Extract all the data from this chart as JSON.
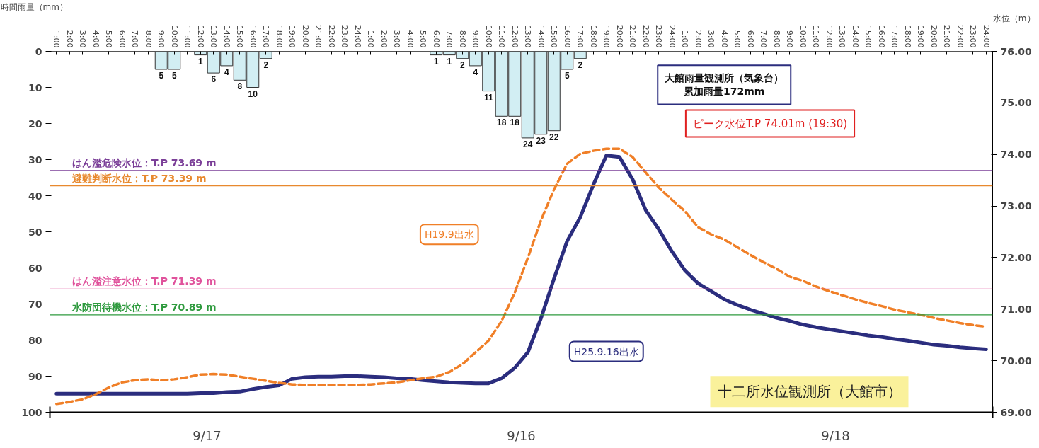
{
  "chart_data": {
    "type": "bar",
    "ylabel": "時間雨量（mm）",
    "y2label": "水位（m）",
    "categories": [
      "1:00",
      "2:00",
      "3:00",
      "4:00",
      "5:00",
      "6:00",
      "7:00",
      "8:00",
      "9:00",
      "10:00",
      "11:00",
      "12:00",
      "13:00",
      "14:00",
      "15:00",
      "16:00",
      "17:00",
      "18:00",
      "19:00",
      "20:00",
      "21:00",
      "22:00",
      "23:00",
      "24:00",
      "1:00",
      "2:00",
      "3:00",
      "4:00",
      "5:00",
      "6:00",
      "7:00",
      "8:00",
      "9:00",
      "10:00",
      "11:00",
      "12:00",
      "13:00",
      "14:00",
      "15:00",
      "16:00",
      "17:00",
      "18:00",
      "19:00",
      "20:00",
      "21:00",
      "22:00",
      "23:00",
      "24:00",
      "1:00",
      "2:00",
      "3:00",
      "4:00",
      "5:00",
      "6:00",
      "7:00",
      "8:00",
      "9:00",
      "10:00",
      "11:00",
      "12:00",
      "13:00",
      "14:00",
      "15:00",
      "16:00",
      "17:00",
      "18:00",
      "19:00",
      "20:00",
      "21:00",
      "22:00",
      "23:00",
      "24:00"
    ],
    "series": [
      {
        "color": "#d2eef3",
        "data_labels": true,
        "values": [
          null,
          null,
          null,
          null,
          null,
          null,
          null,
          null,
          5,
          5,
          null,
          1,
          6,
          4,
          8,
          10,
          2,
          null,
          null,
          null,
          null,
          null,
          null,
          null,
          null,
          null,
          null,
          null,
          null,
          1,
          1,
          2,
          4,
          11,
          18,
          18,
          24,
          23,
          22,
          5,
          2,
          null,
          null,
          null,
          null,
          null,
          null,
          null,
          null,
          null,
          null,
          null,
          null,
          null,
          null,
          null,
          null,
          null,
          null,
          null,
          null,
          null,
          null,
          null,
          null,
          null,
          null,
          null,
          null,
          null,
          null,
          null
        ]
      },
      {
        "type": "line",
        "axis": "y2",
        "name": "H25.9.16出水",
        "color": "#2b2d7e",
        "line_style": "solid",
        "values": [
          69.36,
          69.36,
          69.36,
          69.36,
          69.36,
          69.36,
          69.36,
          69.36,
          69.36,
          69.36,
          69.36,
          69.37,
          69.37,
          69.39,
          69.4,
          69.45,
          69.49,
          69.52,
          69.65,
          69.68,
          69.69,
          69.69,
          69.7,
          69.7,
          69.69,
          69.68,
          69.66,
          69.65,
          69.62,
          69.6,
          69.58,
          69.57,
          69.56,
          69.56,
          69.66,
          69.86,
          70.16,
          70.82,
          71.59,
          72.32,
          72.78,
          73.41,
          73.98,
          73.95,
          73.52,
          72.92,
          72.55,
          72.12,
          71.75,
          71.5,
          71.35,
          71.19,
          71.08,
          70.99,
          70.91,
          70.83,
          70.77,
          70.7,
          70.65,
          70.61,
          70.57,
          70.53,
          70.49,
          70.46,
          70.42,
          70.39,
          70.35,
          70.31,
          70.29,
          70.26,
          70.24,
          70.22
        ]
      },
      {
        "type": "line",
        "axis": "y2",
        "name": "H19.9出水",
        "color": "#f07f27",
        "line_style": "dashed",
        "values": [
          69.16,
          69.2,
          69.25,
          69.35,
          69.48,
          69.58,
          69.62,
          69.64,
          69.62,
          69.64,
          69.68,
          69.73,
          69.74,
          69.73,
          69.69,
          69.65,
          69.61,
          69.57,
          69.54,
          69.53,
          69.53,
          69.53,
          69.53,
          69.53,
          69.54,
          69.56,
          69.58,
          69.62,
          69.66,
          69.69,
          69.78,
          69.93,
          70.16,
          70.39,
          70.77,
          71.32,
          71.99,
          72.72,
          73.32,
          73.82,
          74.01,
          74.07,
          74.11,
          74.11,
          73.95,
          73.65,
          73.36,
          73.12,
          72.9,
          72.59,
          72.45,
          72.35,
          72.2,
          72.05,
          71.91,
          71.78,
          71.63,
          71.55,
          71.44,
          71.35,
          71.27,
          71.19,
          71.12,
          71.06,
          70.99,
          70.94,
          70.89,
          70.83,
          70.78,
          70.73,
          70.69,
          70.66
        ]
      }
    ],
    "ylim": [
      100,
      0
    ],
    "yticks": [
      0,
      10,
      20,
      30,
      40,
      50,
      60,
      70,
      80,
      90,
      100
    ],
    "y2lim": [
      69,
      76
    ],
    "y2ticks": [
      {
        "value": 69,
        "label": "69.00"
      },
      {
        "value": 70,
        "label": "70.00"
      },
      {
        "value": 71,
        "label": "71.00"
      },
      {
        "value": 72,
        "label": "72.00"
      },
      {
        "value": 73,
        "label": "73.00"
      },
      {
        "value": 74,
        "label": "74.00"
      },
      {
        "value": 75,
        "label": "75.00"
      },
      {
        "value": 76,
        "label": "76.00"
      }
    ],
    "ref_lines": [
      {
        "axis": "y2",
        "value": 73.69,
        "label": "はん濫危険水位：T.P 73.69 m",
        "color": "#7b3f98"
      },
      {
        "axis": "y2",
        "value": 73.39,
        "label": "避難判断水位：T.P 73.39 m",
        "color": "#e8892e"
      },
      {
        "axis": "y2",
        "value": 71.39,
        "label": "はん濫注意水位：T.P 71.39 m",
        "color": "#e0529c"
      },
      {
        "axis": "y2",
        "value": 70.89,
        "label": "水防団待機水位：T.P 70.89 m",
        "color": "#2e9a3e"
      }
    ],
    "annotations": [
      "大館雨量観測所（気象台）",
      "累加雨量172mm",
      "ピーク水位T.P 74.01m (19:30)",
      "十二所水位観測所（大館市）",
      "9/17",
      "9/16",
      "9/18"
    ],
    "grid": false
  }
}
